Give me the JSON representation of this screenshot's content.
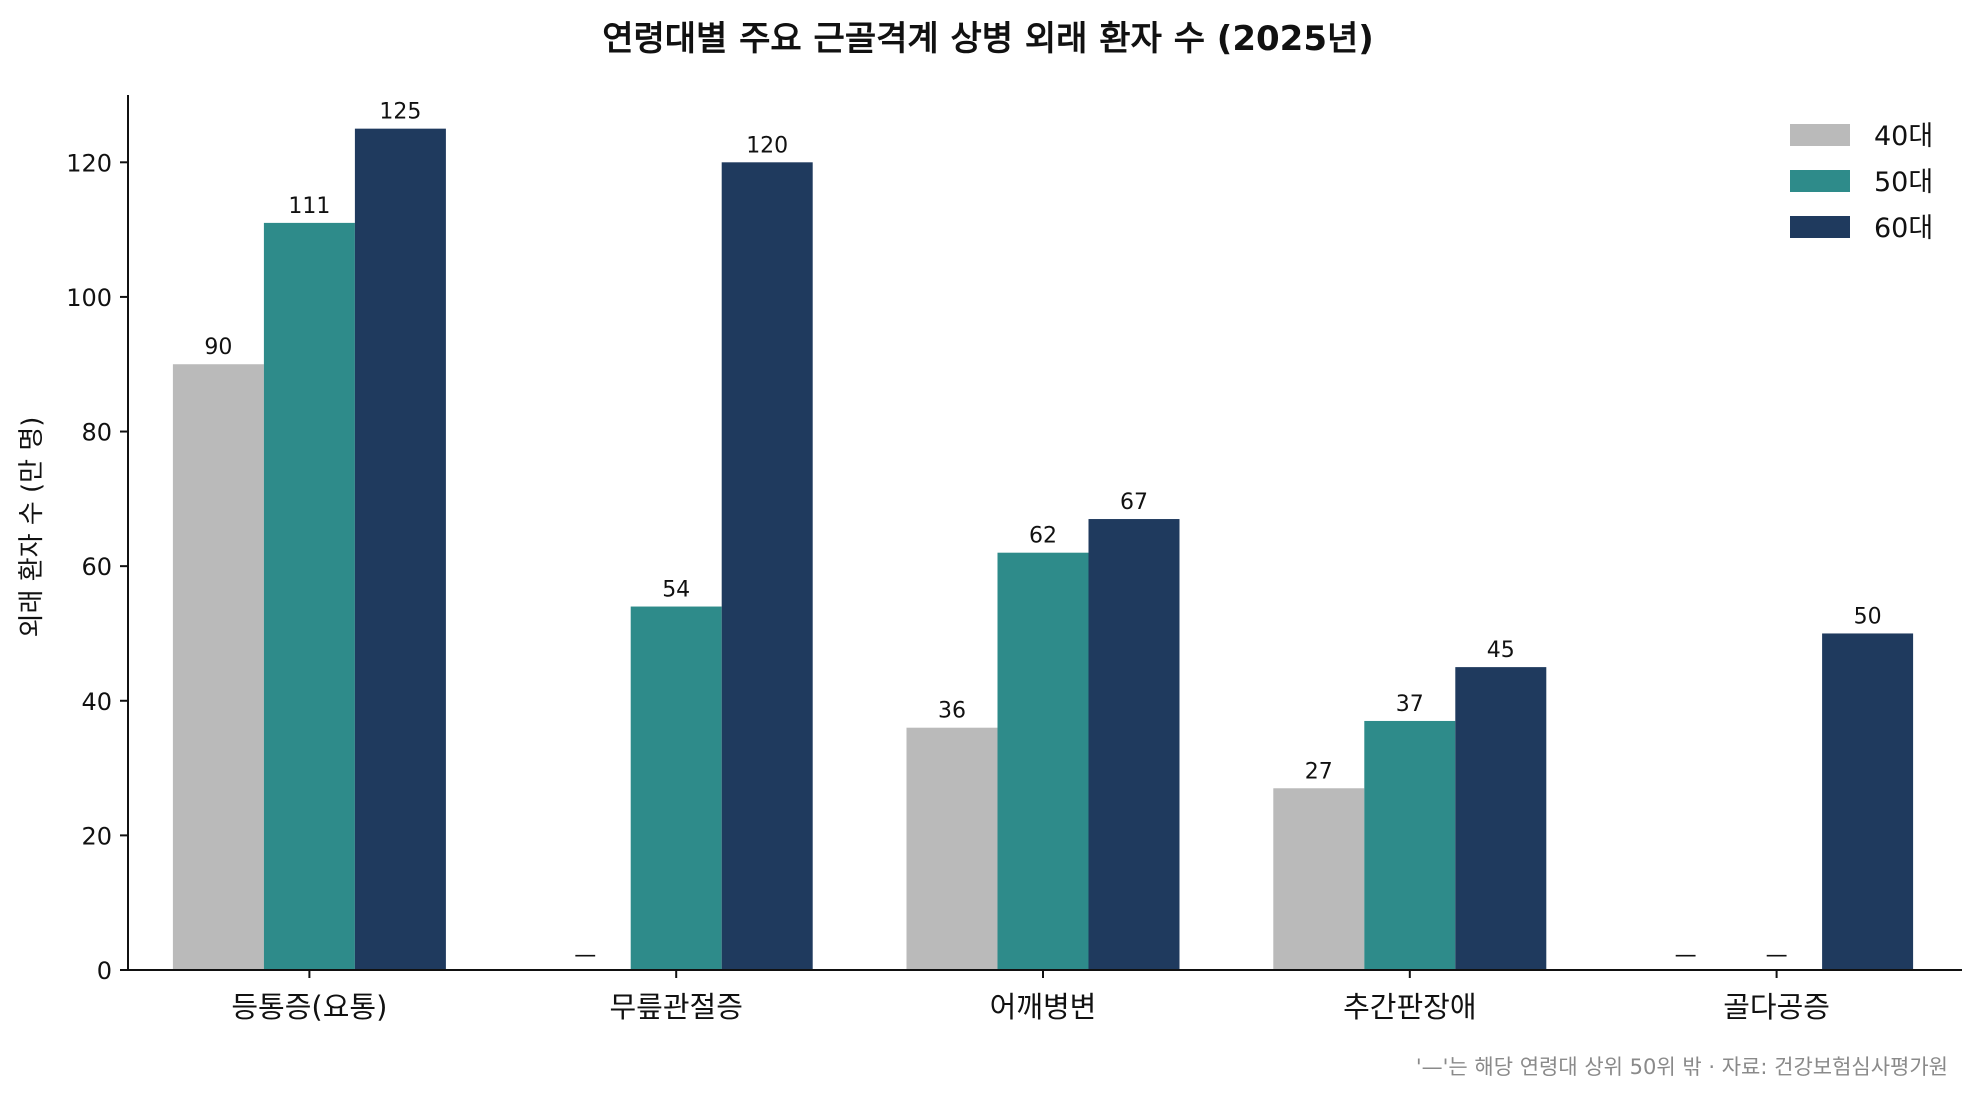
{
  "chart_data": {
    "type": "bar",
    "title": "연령대별 주요 근골격계 상병 외래 환자 수 (2025년)",
    "xlabel": "",
    "ylabel": "외래 환자 수 (만 명)",
    "ylim": [
      0,
      130
    ],
    "yticks": [
      0,
      20,
      40,
      60,
      80,
      100,
      120
    ],
    "categories": [
      "등통증(요통)",
      "무릎관절증",
      "어깨병변",
      "추간판장애",
      "골다공증"
    ],
    "series": [
      {
        "name": "40대",
        "color": "#bababa",
        "values": [
          90,
          null,
          36,
          27,
          null
        ]
      },
      {
        "name": "50대",
        "color": "#2e8b8a",
        "values": [
          111,
          54,
          62,
          37,
          null
        ]
      },
      {
        "name": "60대",
        "color": "#1f3a5e",
        "values": [
          125,
          120,
          67,
          45,
          50
        ]
      }
    ],
    "missing_marker": "—",
    "legend_position": "top-right",
    "grid": false,
    "footnote": "'—'는 해당 연령대 상위 50위 밖 · 자료: 건강보험심사평가원"
  }
}
